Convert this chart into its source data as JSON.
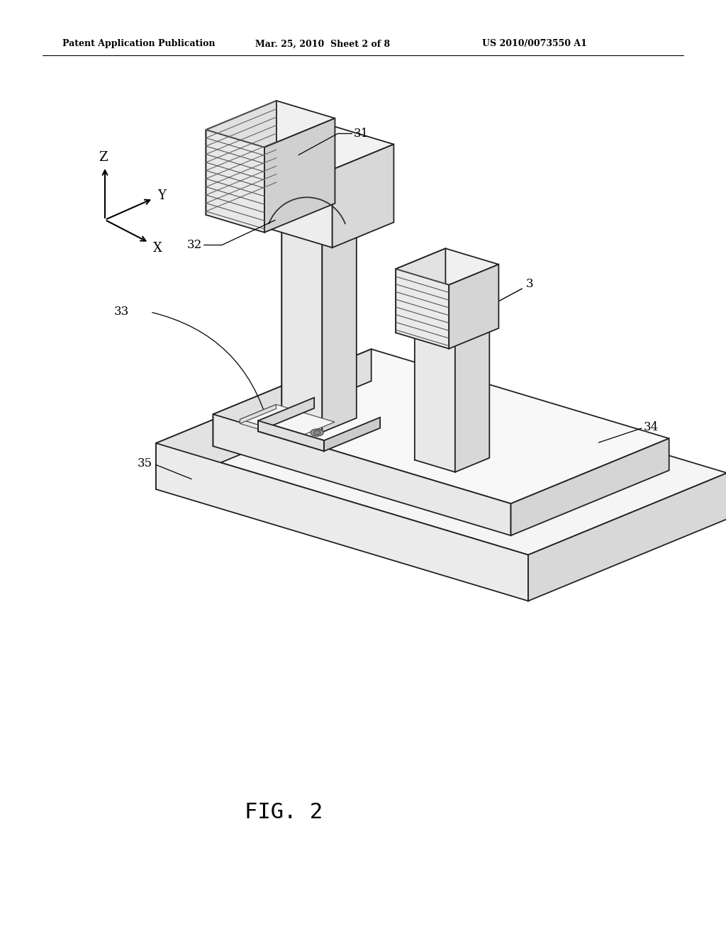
{
  "background_color": "#ffffff",
  "header_left": "Patent Application Publication",
  "header_center": "Mar. 25, 2010  Sheet 2 of 8",
  "header_right": "US 2010/0073550 A1",
  "caption": "FIG. 2",
  "ec": "#222222",
  "lw_main": 1.3,
  "fc_top": "#f8f8f8",
  "fc_left": "#e0e0e0",
  "fc_right": "#d0d0d0",
  "fc_front": "#e8e8e8"
}
